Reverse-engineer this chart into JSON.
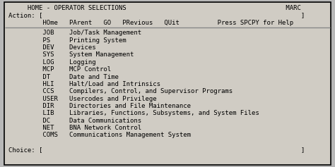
{
  "bg_color": "#b8b8b8",
  "screen_bg": "#d0ccc4",
  "border_color": "#000000",
  "text_color": "#000000",
  "sep_color": "#888888",
  "font_size": 6.5,
  "lines": [
    "     HOME - OPERATOR SELECTIONS                                          MARC",
    "Action: [                                                                    ]",
    "         HOme   PArent   GO   PRevious   QUit          Press SPCPY for Help",
    "SEP",
    "         JOB    Job/Task Management",
    "         PS     Printing System",
    "         DEV    Devices",
    "         SYS    System Management",
    "         LOG    Logging",
    "         MCP    MCP Control",
    "         DT     Date and Time",
    "         HLI    Halt/Load and Intrinsics",
    "         CCS    Compilers, Control, and Supervisor Programs",
    "         USER   Usercodes and Privilege",
    "         DIR    Directories and File Maintenance",
    "         LIB    Libraries, Functions, Subsystems, and System Files",
    "         DC     Data Communications",
    "         NET    BNA Network Control",
    "         COMS   Communications Management System",
    "",
    "Choice: [                                                                    ]"
  ]
}
